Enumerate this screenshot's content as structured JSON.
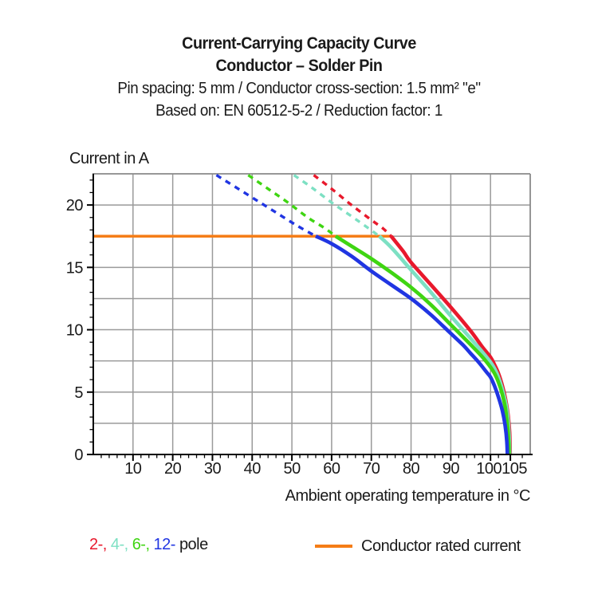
{
  "title": {
    "line1": "Current-Carrying Capacity Curve",
    "line2": "Conductor – Solder Pin",
    "line3": "Pin spacing: 5 mm / Conductor cross-section: 1.5 mm² \"e\"",
    "line4": "Based on: EN 60512-5-2 / Reduction factor: 1"
  },
  "legend": {
    "pole_segments": [
      {
        "text": "2-,",
        "color": "#e8192c"
      },
      {
        "text": "4-,",
        "color": "#7de0c3"
      },
      {
        "text": "6-,",
        "color": "#3fd512"
      },
      {
        "text": "12-",
        "color": "#2035e2"
      },
      {
        "text": "pole",
        "color": "#1a1a1a"
      }
    ],
    "rated_label": "Conductor rated current"
  },
  "chart_data": {
    "type": "line",
    "title": "Current-Carrying Capacity Curve",
    "subtitle": "Conductor – Solder Pin",
    "conditions": "Pin spacing: 5 mm / Conductor cross-section: 1.5 mm² \"e\" / Based on: EN 60512-5-2 / Reduction factor: 1",
    "xlabel": "Ambient operating temperature in °C",
    "ylabel": "Current in A",
    "xlim": [
      0,
      110
    ],
    "ylim": [
      0,
      22.5
    ],
    "grid": true,
    "x_grid_step": 10,
    "y_grid_step": 2.5,
    "x_minor_step": 2,
    "y_minor_step": 1,
    "x_ticks_major": [
      10,
      20,
      30,
      40,
      50,
      60,
      70,
      80,
      90,
      100,
      105
    ],
    "x_tick_labels": [
      "10",
      "20",
      "30",
      "40",
      "50",
      "60",
      "70",
      "80",
      "90",
      "100",
      "105"
    ],
    "y_ticks_major": [
      0,
      5,
      10,
      15,
      20
    ],
    "y_tick_labels": [
      "0",
      "5",
      "10",
      "15",
      "20"
    ],
    "colors": {
      "grid": "#9a9a9a",
      "frame": "#8a8a8a",
      "axis": "#000000"
    },
    "rated_line": {
      "label": "Conductor rated current",
      "color": "#f57d17",
      "y": 17.5,
      "x_start": 0,
      "x_end": 75.2
    },
    "series": [
      {
        "name": "2-pole",
        "color": "#e8192c",
        "dashed": [
          [
            55.5,
            22.4
          ],
          [
            60,
            21.3
          ],
          [
            65,
            20.0
          ],
          [
            70,
            18.8
          ],
          [
            73,
            18.1
          ],
          [
            75,
            17.5
          ]
        ],
        "solid": [
          [
            75,
            17.5
          ],
          [
            78,
            16.3
          ],
          [
            80,
            15.4
          ],
          [
            85,
            13.6
          ],
          [
            90,
            11.8
          ],
          [
            95,
            9.9
          ],
          [
            98,
            8.6
          ],
          [
            100,
            7.8
          ],
          [
            101,
            7.2
          ],
          [
            102,
            6.5
          ],
          [
            103,
            5.5
          ],
          [
            103.8,
            4.4
          ],
          [
            104.4,
            3.2
          ],
          [
            104.8,
            1.8
          ],
          [
            104.95,
            0
          ]
        ]
      },
      {
        "name": "4-pole",
        "color": "#7de0c3",
        "dashed": [
          [
            50.5,
            22.4
          ],
          [
            55,
            21.4
          ],
          [
            60,
            20.2
          ],
          [
            65,
            19.1
          ],
          [
            69,
            18.2
          ],
          [
            72,
            17.5
          ]
        ],
        "solid": [
          [
            72,
            17.5
          ],
          [
            75,
            16.6
          ],
          [
            80,
            14.8
          ],
          [
            85,
            13.0
          ],
          [
            90,
            11.1
          ],
          [
            95,
            9.3
          ],
          [
            98,
            8.2
          ],
          [
            100,
            7.4
          ],
          [
            101,
            6.9
          ],
          [
            102,
            6.2
          ],
          [
            103,
            5.2
          ],
          [
            103.9,
            4.0
          ],
          [
            104.4,
            2.8
          ],
          [
            104.7,
            1.4
          ],
          [
            104.85,
            0
          ]
        ]
      },
      {
        "name": "6-pole",
        "color": "#3fd512",
        "dashed": [
          [
            39,
            22.4
          ],
          [
            44,
            21.3
          ],
          [
            49,
            20.2
          ],
          [
            54,
            19.0
          ],
          [
            58,
            18.2
          ],
          [
            61,
            17.5
          ]
        ],
        "solid": [
          [
            61,
            17.5
          ],
          [
            65,
            16.7
          ],
          [
            70,
            15.7
          ],
          [
            75,
            14.6
          ],
          [
            80,
            13.4
          ],
          [
            85,
            12.0
          ],
          [
            90,
            10.4
          ],
          [
            95,
            8.8
          ],
          [
            98,
            7.8
          ],
          [
            100,
            7.0
          ],
          [
            101,
            6.5
          ],
          [
            102,
            5.8
          ],
          [
            103,
            4.8
          ],
          [
            103.8,
            3.6
          ],
          [
            104.3,
            2.2
          ],
          [
            104.6,
            0.9
          ],
          [
            104.65,
            0
          ]
        ]
      },
      {
        "name": "12-pole",
        "color": "#2035e2",
        "dashed": [
          [
            31,
            22.4
          ],
          [
            36,
            21.4
          ],
          [
            41,
            20.4
          ],
          [
            46,
            19.4
          ],
          [
            51,
            18.4
          ],
          [
            56,
            17.5
          ]
        ],
        "solid": [
          [
            56,
            17.5
          ],
          [
            60,
            16.9
          ],
          [
            65,
            15.9
          ],
          [
            70,
            14.7
          ],
          [
            75,
            13.6
          ],
          [
            80,
            12.5
          ],
          [
            85,
            11.2
          ],
          [
            90,
            9.7
          ],
          [
            93,
            8.8
          ],
          [
            95,
            8.1
          ],
          [
            97,
            7.4
          ],
          [
            99,
            6.6
          ],
          [
            100,
            6.2
          ],
          [
            101,
            5.5
          ],
          [
            102,
            4.6
          ],
          [
            103,
            3.5
          ],
          [
            103.7,
            2.3
          ],
          [
            104.1,
            1.1
          ],
          [
            104.25,
            0
          ]
        ]
      }
    ]
  }
}
